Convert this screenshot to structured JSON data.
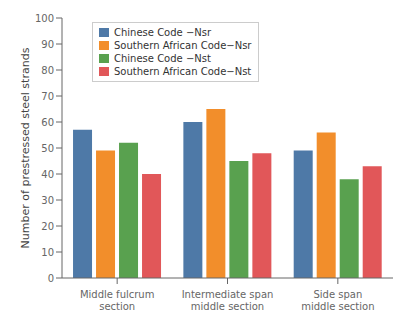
{
  "chart_data": {
    "type": "bar",
    "categories": [
      "Middle fulcrum\nsection",
      "Intermediate span\nmiddle section",
      "Side span\nmiddle section"
    ],
    "series": [
      {
        "name": "Chinese Code −Nsr",
        "color": "#4e79a7",
        "values": [
          57,
          60,
          49
        ]
      },
      {
        "name": "Southern African Code−Nsr",
        "color": "#f28e2b",
        "values": [
          49,
          65,
          56
        ]
      },
      {
        "name": "Chinese Code −Nst",
        "color": "#59a14f",
        "values": [
          52,
          45,
          38
        ]
      },
      {
        "name": "Southern African Code−Nst",
        "color": "#e15759",
        "values": [
          40,
          48,
          43
        ]
      }
    ],
    "ylabel": "Number of prestressed steel strands",
    "ylim": [
      0,
      100
    ],
    "yticks": [
      0,
      10,
      20,
      30,
      40,
      50,
      60,
      70,
      80,
      90,
      100
    ],
    "grid": false,
    "legend": "upper left"
  }
}
